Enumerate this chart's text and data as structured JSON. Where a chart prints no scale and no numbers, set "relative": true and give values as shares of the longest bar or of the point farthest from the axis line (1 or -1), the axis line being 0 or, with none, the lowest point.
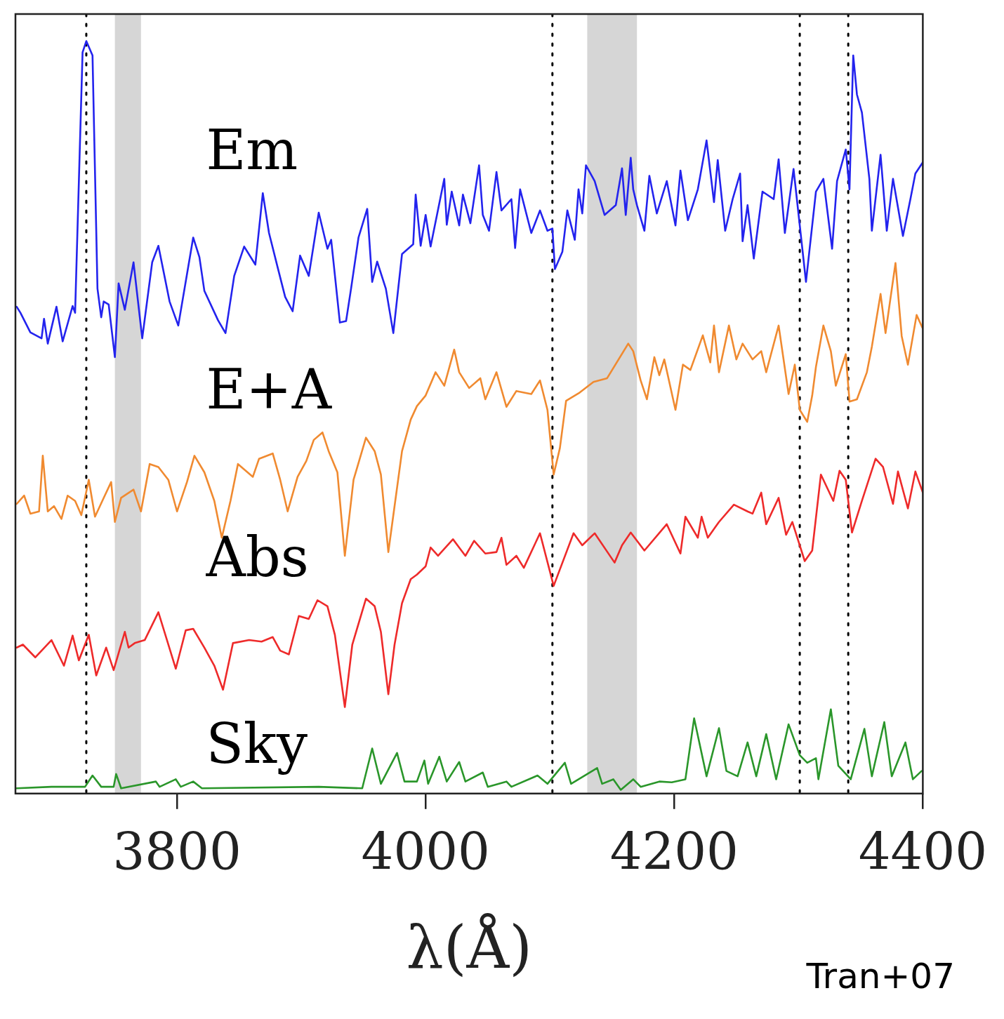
{
  "chart_data": {
    "type": "line",
    "relative": true,
    "tick_labels": "x",
    "xlabel": "λ(Å)",
    "annotations": [
      "Tran+07"
    ],
    "xlim": [
      3670,
      4400
    ],
    "xticks": [
      3800,
      4000,
      4200,
      4400
    ],
    "ref_lines": [
      {
        "axis": "x",
        "value": 3727,
        "line_style": "dotted",
        "color": "#000000"
      },
      {
        "axis": "x",
        "value": 4102,
        "line_style": "dotted",
        "color": "#000000"
      },
      {
        "axis": "x",
        "value": 4301,
        "line_style": "dotted",
        "color": "#000000"
      },
      {
        "axis": "x",
        "value": 4340,
        "line_style": "dotted",
        "color": "#000000"
      }
    ],
    "bands": [
      {
        "axis": "x",
        "from": 3750,
        "to": 3771,
        "color": "#000000"
      },
      {
        "axis": "x",
        "from": 4130,
        "to": 4170,
        "color": "#000000"
      }
    ],
    "series": [
      {
        "name": "Em",
        "color": "#2323ee",
        "x": [
          3671,
          3674,
          3682,
          3691,
          3693,
          3696,
          3703,
          3708,
          3716,
          3718,
          3724,
          3727,
          3732,
          3736,
          3739,
          3741,
          3745,
          3750,
          3753,
          3758,
          3765,
          3772,
          3780,
          3785,
          3794,
          3801,
          3813,
          3818,
          3822,
          3833,
          3839,
          3846,
          3854,
          3863,
          3869,
          3874,
          3881,
          3887,
          3893,
          3899,
          3906,
          3914,
          3921,
          3924,
          3931,
          3936,
          3940,
          3946,
          3953,
          3957,
          3961,
          3968,
          3974,
          3981,
          3990,
          3992,
          3996,
          4000,
          4004,
          4015,
          4017,
          4021,
          4027,
          4030,
          4036,
          4043,
          4046,
          4051,
          4057,
          4061,
          4069,
          4072,
          4076,
          4085,
          4092,
          4098,
          4102,
          4104,
          4110,
          4114,
          4120,
          4123,
          4126,
          4129,
          4136,
          4144,
          4153,
          4158,
          4161,
          4165,
          4167,
          4170,
          4176,
          4180,
          4186,
          4194,
          4201,
          4205,
          4211,
          4219,
          4226,
          4232,
          4235,
          4241,
          4247,
          4253,
          4255,
          4259,
          4264,
          4271,
          4280,
          4284,
          4289,
          4296,
          4301,
          4306,
          4314,
          4320,
          4327,
          4331,
          4338,
          4341,
          4344,
          4347,
          4351,
          4357,
          4359,
          4366,
          4371,
          4376,
          4384,
          4390,
          4394,
          4400
        ],
        "values": [
          0.647,
          0.639,
          0.613,
          0.605,
          0.631,
          0.598,
          0.647,
          0.601,
          0.648,
          0.639,
          0.985,
          1,
          0.981,
          0.671,
          0.633,
          0.654,
          0.65,
          0.58,
          0.678,
          0.643,
          0.706,
          0.605,
          0.706,
          0.728,
          0.654,
          0.622,
          0.739,
          0.713,
          0.668,
          0.629,
          0.612,
          0.688,
          0.727,
          0.703,
          0.798,
          0.745,
          0.699,
          0.66,
          0.641,
          0.715,
          0.688,
          0.772,
          0.724,
          0.736,
          0.626,
          0.628,
          0.671,
          0.739,
          0.777,
          0.68,
          0.707,
          0.671,
          0.612,
          0.717,
          0.73,
          0.796,
          0.728,
          0.769,
          0.727,
          0.817,
          0.756,
          0.8,
          0.755,
          0.796,
          0.758,
          0.835,
          0.769,
          0.748,
          0.826,
          0.775,
          0.79,
          0.725,
          0.803,
          0.745,
          0.775,
          0.748,
          0.751,
          0.697,
          0.72,
          0.775,
          0.736,
          0.803,
          0.771,
          0.835,
          0.814,
          0.769,
          0.782,
          0.831,
          0.769,
          0.845,
          0.803,
          0.782,
          0.748,
          0.821,
          0.771,
          0.814,
          0.755,
          0.828,
          0.762,
          0.803,
          0.868,
          0.786,
          0.842,
          0.748,
          0.79,
          0.824,
          0.734,
          0.782,
          0.711,
          0.8,
          0.79,
          0.843,
          0.745,
          0.83,
          0.755,
          0.68,
          0.8,
          0.817,
          0.724,
          0.814,
          0.856,
          0.803,
          0.981,
          0.929,
          0.905,
          0.817,
          0.748,
          0.849,
          0.748,
          0.817,
          0.741,
          0.79,
          0.824,
          0.839
        ]
      },
      {
        "name": "E+A",
        "color": "#f08a30",
        "x": [
          3671,
          3677,
          3682,
          3689,
          3692,
          3696,
          3701,
          3707,
          3712,
          3718,
          3723,
          3729,
          3734,
          3741,
          3747,
          3750,
          3755,
          3765,
          3771,
          3778,
          3785,
          3793,
          3800,
          3808,
          3814,
          3822,
          3830,
          3836,
          3843,
          3849,
          3861,
          3866,
          3877,
          3883,
          3889,
          3897,
          3904,
          3910,
          3917,
          3922,
          3929,
          3935,
          3942,
          3952,
          3959,
          3964,
          3970,
          3975,
          3981,
          3988,
          3993,
          4000,
          4008,
          4015,
          4023,
          4027,
          4035,
          4044,
          4048,
          4057,
          4065,
          4073,
          4085,
          4092,
          4098,
          4103,
          4108,
          4113,
          4124,
          4135,
          4146,
          4163,
          4167,
          4173,
          4178,
          4184,
          4188,
          4192,
          4201,
          4207,
          4213,
          4223,
          4229,
          4232,
          4236,
          4244,
          4250,
          4255,
          4263,
          4270,
          4274,
          4284,
          4292,
          4297,
          4301,
          4307,
          4311,
          4314,
          4320,
          4326,
          4330,
          4338,
          4341,
          4347,
          4355,
          4359,
          4366,
          4370,
          4378,
          4383,
          4388,
          4395,
          4400
        ],
        "values": [
          0.385,
          0.396,
          0.372,
          0.375,
          0.449,
          0.375,
          0.382,
          0.365,
          0.396,
          0.389,
          0.37,
          0.417,
          0.368,
          0.393,
          0.414,
          0.361,
          0.393,
          0.404,
          0.375,
          0.438,
          0.434,
          0.417,
          0.375,
          0.414,
          0.449,
          0.427,
          0.389,
          0.34,
          0.389,
          0.438,
          0.421,
          0.445,
          0.452,
          0.417,
          0.375,
          0.421,
          0.442,
          0.47,
          0.48,
          0.455,
          0.427,
          0.316,
          0.417,
          0.473,
          0.455,
          0.424,
          0.321,
          0.382,
          0.455,
          0.497,
          0.515,
          0.529,
          0.56,
          0.542,
          0.59,
          0.56,
          0.539,
          0.552,
          0.524,
          0.56,
          0.514,
          0.535,
          0.531,
          0.549,
          0.51,
          0.424,
          0.459,
          0.522,
          0.533,
          0.547,
          0.552,
          0.598,
          0.588,
          0.549,
          0.524,
          0.58,
          0.556,
          0.577,
          0.51,
          0.57,
          0.563,
          0.609,
          0.573,
          0.622,
          0.56,
          0.622,
          0.577,
          0.598,
          0.577,
          0.588,
          0.56,
          0.622,
          0.531,
          0.57,
          0.51,
          0.494,
          0.529,
          0.567,
          0.622,
          0.588,
          0.542,
          0.584,
          0.521,
          0.524,
          0.56,
          0.594,
          0.664,
          0.612,
          0.705,
          0.608,
          0.57,
          0.636,
          0.618
        ]
      },
      {
        "name": "Abs",
        "color": "#ee2a2a",
        "x": [
          3671,
          3676,
          3686,
          3699,
          3709,
          3716,
          3721,
          3729,
          3735,
          3743,
          3749,
          3758,
          3761,
          3766,
          3774,
          3785,
          3799,
          3807,
          3813,
          3822,
          3830,
          3837,
          3845,
          3858,
          3868,
          3877,
          3883,
          3890,
          3898,
          3906,
          3913,
          3921,
          3927,
          3935,
          3941,
          3952,
          3959,
          3964,
          3970,
          3975,
          3981,
          3988,
          3993,
          4000,
          4004,
          4010,
          4022,
          4027,
          4032,
          4039,
          4048,
          4057,
          4061,
          4065,
          4073,
          4079,
          4092,
          4103,
          4119,
          4126,
          4136,
          4152,
          4158,
          4165,
          4176,
          4194,
          4205,
          4209,
          4219,
          4222,
          4227,
          4236,
          4248,
          4259,
          4263,
          4270,
          4274,
          4284,
          4290,
          4295,
          4305,
          4311,
          4318,
          4328,
          4333,
          4338,
          4343,
          4351,
          4362,
          4368,
          4376,
          4380,
          4388,
          4394,
          4400
        ],
        "values": [
          0.194,
          0.198,
          0.181,
          0.204,
          0.17,
          0.21,
          0.177,
          0.211,
          0.157,
          0.194,
          0.164,
          0.215,
          0.194,
          0.2,
          0.204,
          0.241,
          0.166,
          0.217,
          0.219,
          0.194,
          0.17,
          0.138,
          0.2,
          0.204,
          0.202,
          0.208,
          0.19,
          0.185,
          0.236,
          0.232,
          0.257,
          0.249,
          0.211,
          0.115,
          0.198,
          0.259,
          0.249,
          0.215,
          0.132,
          0.198,
          0.253,
          0.285,
          0.291,
          0.302,
          0.327,
          0.316,
          0.338,
          0.327,
          0.316,
          0.336,
          0.319,
          0.321,
          0.34,
          0.304,
          0.316,
          0.3,
          0.346,
          0.276,
          0.346,
          0.33,
          0.346,
          0.307,
          0.33,
          0.347,
          0.323,
          0.358,
          0.319,
          0.368,
          0.34,
          0.368,
          0.34,
          0.361,
          0.384,
          0.375,
          0.372,
          0.4,
          0.358,
          0.393,
          0.344,
          0.361,
          0.309,
          0.323,
          0.424,
          0.389,
          0.429,
          0.417,
          0.347,
          0.389,
          0.445,
          0.434,
          0.385,
          0.428,
          0.379,
          0.428,
          0.4
        ]
      },
      {
        "name": "Sky",
        "color": "#2a962a",
        "x": [
          3671,
          3699,
          3726,
          3732,
          3739,
          3749,
          3751,
          3755,
          3783,
          3786,
          3799,
          3803,
          3813,
          3820,
          3914,
          3949,
          3957,
          3964,
          3977,
          3983,
          3993,
          3999,
          4002,
          4011,
          4017,
          4027,
          4032,
          4046,
          4050,
          4065,
          4069,
          4090,
          4098,
          4112,
          4117,
          4138,
          4142,
          4151,
          4157,
          4167,
          4173,
          4188,
          4198,
          4209,
          4216,
          4226,
          4236,
          4242,
          4251,
          4259,
          4266,
          4274,
          4282,
          4292,
          4301,
          4307,
          4314,
          4316,
          4326,
          4332,
          4342,
          4353,
          4359,
          4369,
          4375,
          4386,
          4392,
          4399
        ],
        "values": [
          0.007,
          0.009,
          0.009,
          0.024,
          0.009,
          0.009,
          0.026,
          0.007,
          0.016,
          0.009,
          0.019,
          0.009,
          0.016,
          0.007,
          0.009,
          0.007,
          0.06,
          0.013,
          0.054,
          0.016,
          0.016,
          0.044,
          0.013,
          0.049,
          0.016,
          0.042,
          0.016,
          0.028,
          0.009,
          0.016,
          0.009,
          0.024,
          0.013,
          0.041,
          0.013,
          0.034,
          0.013,
          0.019,
          0.005,
          0.019,
          0.009,
          0.016,
          0.015,
          0.019,
          0.1,
          0.023,
          0.087,
          0.03,
          0.023,
          0.068,
          0.023,
          0.079,
          0.019,
          0.092,
          0.051,
          0.041,
          0.047,
          0.019,
          0.112,
          0.037,
          0.019,
          0.086,
          0.023,
          0.095,
          0.023,
          0.068,
          0.019,
          0.03
        ]
      }
    ]
  }
}
